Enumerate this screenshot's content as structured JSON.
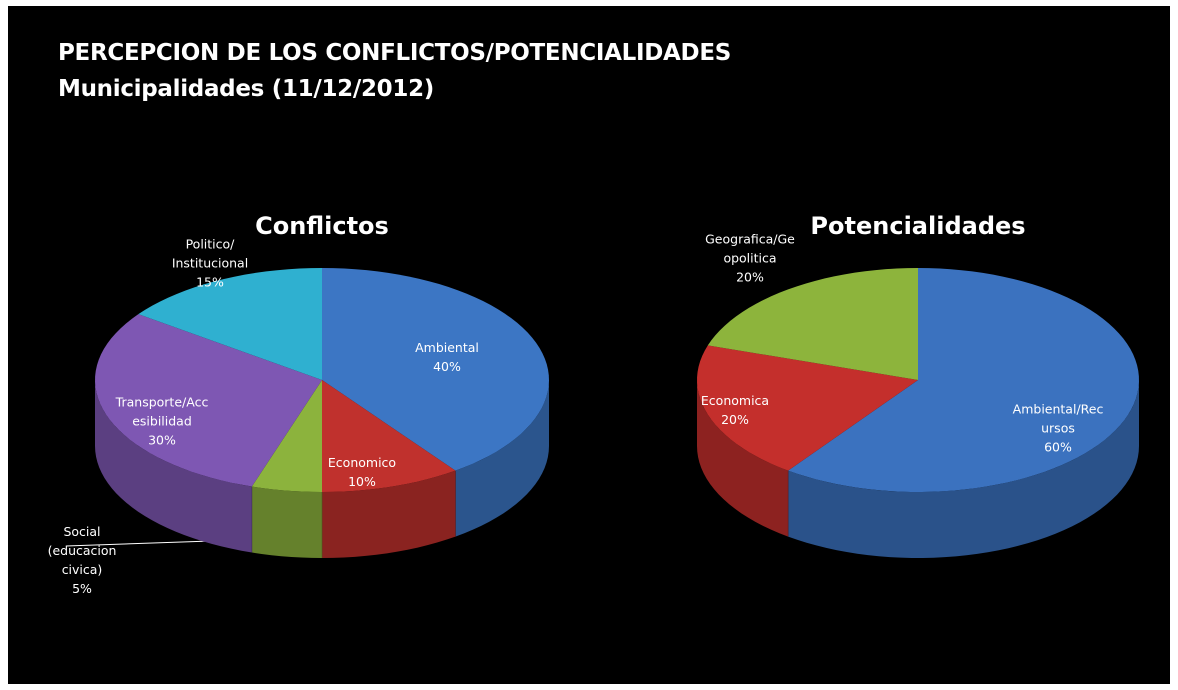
{
  "header": {
    "title": "PERCEPCION DE LOS CONFLICTOS/POTENCIALIDADES",
    "subtitle": "Municipalidades (11/12/2012)"
  },
  "chart_data": [
    {
      "type": "pie",
      "title": "Conflictos",
      "categories": [
        "Ambiental",
        "Economico",
        "Social\n(educacion\ncivica)",
        "Transporte/Acc\nesibilidad",
        "Politico/\nInstitucional"
      ],
      "values": [
        40,
        10,
        5,
        30,
        15
      ],
      "value_labels": [
        "40%",
        "10%",
        "5%",
        "30%",
        "15%"
      ],
      "colors": [
        "#3c76c4",
        "#c0312d",
        "#8cb33d",
        "#7e57b3",
        "#2fb0d0"
      ]
    },
    {
      "type": "pie",
      "title": "Potencialidades",
      "categories": [
        "Ambiental/Rec\nursos",
        "Economica",
        "Geografica/Ge\nopolitica"
      ],
      "values": [
        60,
        20,
        20
      ],
      "value_labels": [
        "60%",
        "20%",
        "20%"
      ],
      "colors": [
        "#3b72bf",
        "#c42f2c",
        "#8db43c"
      ]
    }
  ]
}
